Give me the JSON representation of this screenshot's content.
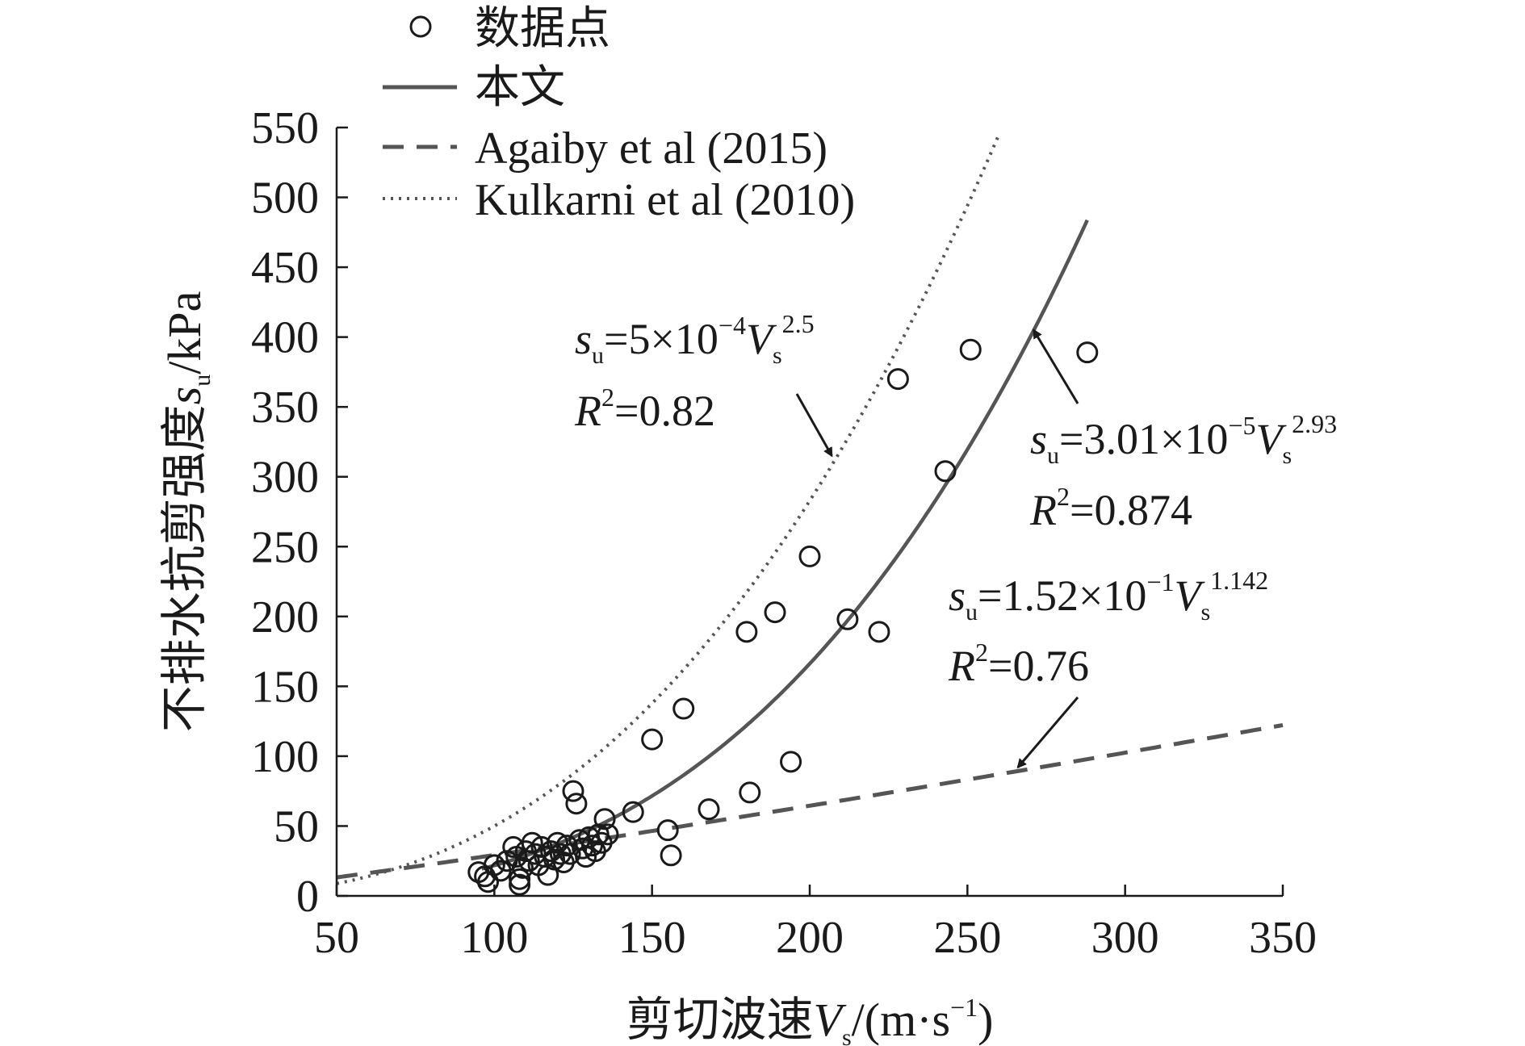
{
  "chart_data": {
    "type": "scatter",
    "xlabel": {
      "main": "剪切波速",
      "var": "V",
      "sub": "s",
      "unit_pre": "/(m·s",
      "unit_sup": "−1",
      "unit_post": ")"
    },
    "ylabel": {
      "main": "不排水抗剪强度",
      "var": "s",
      "sub": "u",
      "unit": "/kPa"
    },
    "xlim": [
      50,
      350
    ],
    "ylim": [
      0,
      550
    ],
    "x_ticks": [
      "50",
      "100",
      "150",
      "200",
      "250",
      "300",
      "350"
    ],
    "y_ticks": [
      "0",
      "50",
      "100",
      "150",
      "200",
      "250",
      "300",
      "350",
      "400",
      "450",
      "500",
      "550"
    ],
    "legend": {
      "position": "top-left",
      "items": [
        {
          "label": "数据点",
          "style": "circle"
        },
        {
          "label": "本文",
          "style": "solid"
        },
        {
          "label": "Agaiby et al (2015)",
          "style": "dashed"
        },
        {
          "label": "Kulkarni et al (2010)",
          "style": "dotted"
        }
      ]
    },
    "series": [
      {
        "name": "数据点",
        "kind": "scatter",
        "points": [
          [
            95,
            17
          ],
          [
            97,
            14
          ],
          [
            98,
            10
          ],
          [
            100,
            22
          ],
          [
            102,
            18
          ],
          [
            104,
            25
          ],
          [
            106,
            35
          ],
          [
            107,
            28
          ],
          [
            108,
            12
          ],
          [
            108,
            8
          ],
          [
            109,
            20
          ],
          [
            110,
            32
          ],
          [
            111,
            25
          ],
          [
            112,
            38
          ],
          [
            113,
            30
          ],
          [
            114,
            22
          ],
          [
            115,
            35
          ],
          [
            116,
            28
          ],
          [
            117,
            15
          ],
          [
            118,
            32
          ],
          [
            119,
            26
          ],
          [
            120,
            38
          ],
          [
            121,
            30
          ],
          [
            122,
            24
          ],
          [
            123,
            36
          ],
          [
            124,
            30
          ],
          [
            125,
            75
          ],
          [
            126,
            66
          ],
          [
            127,
            40
          ],
          [
            128,
            34
          ],
          [
            129,
            28
          ],
          [
            130,
            42
          ],
          [
            131,
            36
          ],
          [
            132,
            32
          ],
          [
            133,
            44
          ],
          [
            134,
            38
          ],
          [
            135,
            55
          ],
          [
            136,
            44
          ],
          [
            144,
            60
          ],
          [
            150,
            112
          ],
          [
            155,
            47
          ],
          [
            156,
            29
          ],
          [
            160,
            134
          ],
          [
            168,
            62
          ],
          [
            180,
            189
          ],
          [
            181,
            74
          ],
          [
            189,
            203
          ],
          [
            194,
            96
          ],
          [
            200,
            243
          ],
          [
            212,
            198
          ],
          [
            222,
            189
          ],
          [
            228,
            370
          ],
          [
            243,
            304
          ],
          [
            251,
            391
          ],
          [
            288,
            389
          ]
        ]
      },
      {
        "name": "本文",
        "kind": "power",
        "style": "solid",
        "coef": 3.01e-05,
        "exp": 2.93,
        "x_range": [
          96,
          288
        ]
      },
      {
        "name": "Agaiby et al (2015)",
        "kind": "power",
        "style": "dashed",
        "coef": 0.152,
        "exp": 1.142,
        "x_range": [
          50,
          350
        ]
      },
      {
        "name": "Kulkarni et al (2010)",
        "kind": "power",
        "style": "dotted",
        "coef": 0.0005,
        "exp": 2.5,
        "x_range": [
          50,
          260
        ]
      }
    ],
    "annotations": [
      {
        "var": "s",
        "sub": "u",
        "eq_pre": "=5×10",
        "eq_sup": "−4",
        "var2": "V",
        "sub2": "s",
        "exp": "2.5",
        "r_label": "R",
        "r_sup": "2",
        "r_value": "=0.82",
        "arrow_to": [
          207,
          315
        ]
      },
      {
        "var": "s",
        "sub": "u",
        "eq_pre": "=3.01×10",
        "eq_sup": "−5",
        "var2": "V",
        "sub2": "s",
        "exp": "2.93",
        "r_label": "R",
        "r_sup": "2",
        "r_value": "=0.874",
        "arrow_to": [
          271,
          405
        ]
      },
      {
        "var": "s",
        "sub": "u",
        "eq_pre": "=1.52×10",
        "eq_sup": "−1",
        "var2": "V",
        "sub2": "s",
        "exp": "1.142",
        "r_label": "R",
        "r_sup": "2",
        "r_value": "=0.76",
        "arrow_to": [
          266,
          92
        ]
      }
    ]
  }
}
